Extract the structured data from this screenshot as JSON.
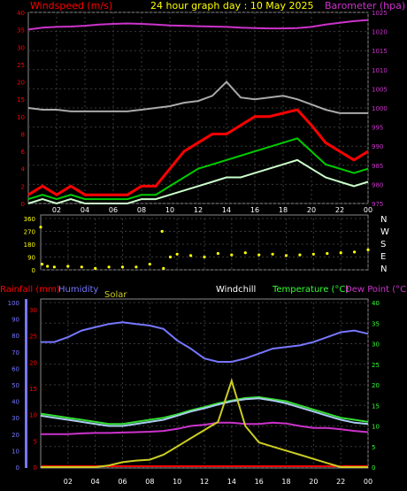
{
  "header": {
    "left": "Windspeed (m/s)",
    "title": "24 hour graph day : 10 May 2025",
    "right": "Barometer (hpa)"
  },
  "lower_header": {
    "rainfall": "Rainfall (mm)",
    "humidity": "Humidity",
    "solar": "Solar",
    "windchill": "Windchill",
    "temperature": "Temperature (°C)",
    "dewpoint": "Dew Point (°C)"
  },
  "colors": {
    "background": "#000000",
    "grid": "#3a3a3a",
    "windspeed_axis": "#ff0000",
    "barometer": "#cc33cc",
    "gust": "#ff0000",
    "average": "#00cc00",
    "speed": "#ccffcc",
    "barometer_line": "#cc33cc",
    "grey_series": "#aaaaaa",
    "direction": "#ffff00",
    "rainfall": "#ff0000",
    "humidity": "#7777ff",
    "solar": "#cccc22",
    "temperature": "#33dd33",
    "dewpoint": "#cc33cc",
    "windchill": "#aaccee",
    "text_yellow": "#ffff00",
    "text_white": "#ffffff",
    "text_green": "#33ff33"
  },
  "chart_data": [
    {
      "type": "line",
      "panel": "wind",
      "x_ticks": [
        "02",
        "04",
        "06",
        "08",
        "10",
        "12",
        "14",
        "16",
        "18",
        "20",
        "22",
        "00"
      ],
      "ylabel": "Windspeed (m/s)",
      "ylim": [
        0,
        40
      ],
      "y_ticks": [
        "0",
        "2",
        "4",
        "6",
        "8",
        "10",
        "15",
        "20",
        "25",
        "30",
        "35",
        "40"
      ],
      "y2label": "Barometer (hpa)",
      "y2lim": [
        975,
        1025
      ],
      "y2_ticks": [
        "975",
        "980",
        "985",
        "990",
        "995",
        "1000",
        "1005",
        "1010",
        "1015",
        "1020",
        "1025"
      ],
      "x": [
        0,
        1,
        2,
        3,
        4,
        5,
        6,
        7,
        8,
        9,
        10,
        11,
        12,
        13,
        14,
        15,
        16,
        17,
        18,
        19,
        20,
        21,
        22,
        23,
        24
      ],
      "series": [
        {
          "values": [
            1020.5,
            1021,
            1021.2,
            1021.3,
            1021.5,
            1021.8,
            1022,
            1022.1,
            1022,
            1021.8,
            1021.6,
            1021.5,
            1021.4,
            1021.3,
            1021.2,
            1021,
            1020.9,
            1020.8,
            1020.8,
            1020.9,
            1021.2,
            1021.8,
            1022.3,
            1022.7,
            1023
          ]
        },
        {
          "values": [
            12.5,
            12,
            12,
            11.5,
            11.5,
            11.5,
            11.5,
            11.5,
            12,
            12.5,
            13,
            14,
            14.5,
            16,
            20,
            15.5,
            15,
            15.5,
            16,
            15,
            13.5,
            12,
            11,
            11,
            11
          ]
        },
        {
          "values": [
            1,
            2,
            1,
            2,
            1,
            1,
            1,
            1,
            2,
            2,
            4,
            6,
            7,
            8,
            8,
            9,
            10,
            10,
            11,
            12,
            9,
            7,
            6,
            5,
            6
          ]
        },
        {
          "values": [
            0.5,
            1,
            0.5,
            1,
            0.5,
            0.5,
            0.5,
            0.5,
            1,
            1,
            2,
            3,
            4,
            4.5,
            5,
            5.5,
            6,
            6.5,
            7,
            7.5,
            6,
            4.5,
            4,
            3.5,
            4
          ]
        },
        {
          "values": [
            0,
            0.5,
            0,
            0.5,
            0,
            0,
            0,
            0,
            0.5,
            0.5,
            1,
            1.5,
            2,
            2.5,
            3,
            3,
            3.5,
            4,
            4.5,
            5,
            4,
            3,
            2.5,
            2,
            2.5
          ]
        }
      ]
    },
    {
      "type": "scatter",
      "panel": "direction",
      "y_ticks": [
        "0",
        "90",
        "180",
        "270",
        "360"
      ],
      "right_labels": [
        "N",
        "W",
        "S",
        "E",
        "N"
      ],
      "ylim": [
        0,
        360
      ],
      "x": [
        0,
        0.1,
        0.5,
        1,
        2,
        3,
        4,
        5,
        6,
        7,
        8,
        8.9,
        9,
        9.5,
        10,
        11,
        12,
        13,
        14,
        15,
        16,
        17,
        18,
        19,
        20,
        21,
        22,
        23,
        24
      ],
      "values": [
        300,
        40,
        25,
        20,
        25,
        20,
        10,
        20,
        20,
        20,
        40,
        270,
        10,
        90,
        110,
        100,
        90,
        115,
        105,
        120,
        105,
        110,
        100,
        105,
        110,
        115,
        120,
        125,
        140
      ]
    },
    {
      "type": "line",
      "panel": "temperature",
      "x_ticks": [
        "02",
        "04",
        "06",
        "08",
        "10",
        "12",
        "14",
        "16",
        "18",
        "20",
        "22",
        "00"
      ],
      "ylim": [
        0,
        40
      ],
      "y_ticks_rain": [
        "0",
        "5",
        "10",
        "15",
        "20",
        "25",
        "30"
      ],
      "y_ticks_humidity": [
        "0",
        "10",
        "20",
        "30",
        "40",
        "50",
        "60",
        "70",
        "80",
        "90",
        "100"
      ],
      "y_ticks_temp": [
        "0",
        "5",
        "10",
        "15",
        "20",
        "25",
        "30",
        "35",
        "40"
      ],
      "x": [
        0,
        1,
        2,
        3,
        4,
        5,
        6,
        7,
        8,
        9,
        10,
        11,
        12,
        13,
        14,
        15,
        16,
        17,
        18,
        19,
        20,
        21,
        22,
        23,
        24
      ],
      "series": [
        {
          "values": [
            76,
            76,
            79,
            83,
            85,
            87,
            88,
            87,
            86,
            84,
            77,
            72,
            66,
            64,
            64,
            66,
            69,
            72,
            73,
            74,
            76,
            79,
            82,
            83,
            81
          ]
        },
        {
          "values": [
            13,
            12.5,
            12,
            11.5,
            11,
            10.5,
            10.5,
            11,
            11.5,
            12,
            12.8,
            13.8,
            14.6,
            15.5,
            16.2,
            16.8,
            17,
            16.5,
            16,
            15,
            14,
            13,
            12,
            11.5,
            11
          ]
        },
        {
          "values": [
            8,
            8,
            8,
            8.2,
            8.3,
            8.3,
            8.4,
            8.5,
            8.6,
            8.8,
            9.3,
            10,
            10.3,
            10.8,
            10.8,
            10.5,
            10.5,
            10.8,
            10.6,
            10,
            9.5,
            9.5,
            9.2,
            8.8,
            8.5
          ]
        },
        {
          "values": [
            12.5,
            12,
            11.5,
            11,
            10.5,
            10,
            10,
            10.5,
            11,
            11.5,
            12.5,
            13.5,
            14.3,
            15.2,
            16,
            16.5,
            16.7,
            16.2,
            15.5,
            14.5,
            13.5,
            12.5,
            11.5,
            10.8,
            10.5
          ]
        },
        {
          "values": [
            0,
            0,
            0,
            0,
            0,
            0.4,
            1.2,
            1.6,
            1.8,
            3,
            5,
            7,
            9,
            11,
            21,
            10,
            6,
            5,
            4,
            3,
            2,
            1,
            0,
            0,
            0
          ]
        }
      ]
    }
  ]
}
